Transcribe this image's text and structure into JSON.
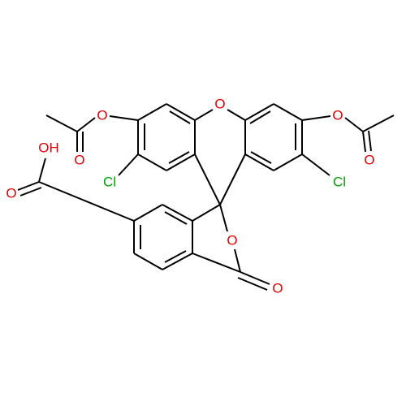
{
  "atoms": [
    {
      "label": "O"
    },
    {
      "label": "O"
    },
    {
      "label": "O"
    },
    {
      "label": "O"
    },
    {
      "label": "O"
    },
    {
      "label": "Cl"
    },
    {
      "label": "Cl"
    },
    {
      "label": "OH"
    },
    {
      "label": "O"
    },
    {
      "label": "O"
    },
    {
      "label": "O"
    }
  ]
}
